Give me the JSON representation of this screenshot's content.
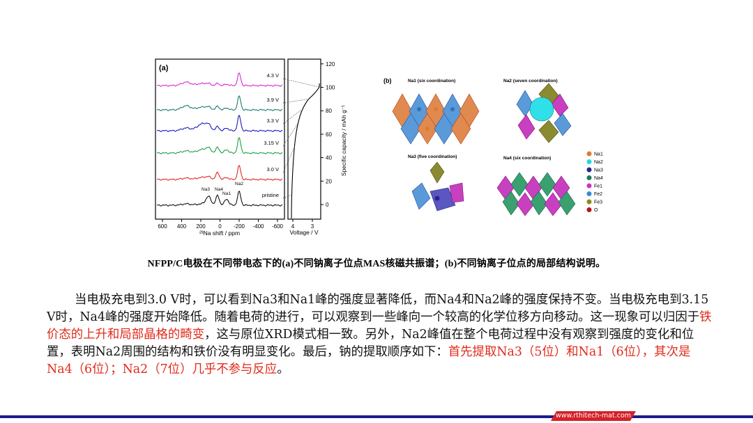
{
  "figure_a": {
    "panel_label": "(a)",
    "nmr_xaxis": {
      "label": "²³Na shift / ppm",
      "ticks": [
        "600",
        "400",
        "200",
        "0",
        "-200",
        "-400",
        "-600"
      ]
    },
    "spectrum_labels": [
      "4.3 V",
      "3.9 V",
      "3.3 V",
      "3.15 V",
      "3.0 V",
      "pristine"
    ],
    "spectrum_colors": [
      "#d62ad6",
      "#1a7a6c",
      "#1818c0",
      "#18a040",
      "#e02424",
      "#101010"
    ],
    "peak_labels": [
      "Na3",
      "Na4",
      "Na1",
      "Na2"
    ],
    "voltage_axis": {
      "label": "Voltage / V",
      "ticks": [
        "4",
        "3"
      ]
    },
    "capacity_axis": {
      "label": "Specific capacity / mAh g⁻¹",
      "ticks": [
        "0",
        "20",
        "40",
        "60",
        "80",
        "100",
        "120"
      ]
    }
  },
  "figure_b": {
    "panel_label": "(b)",
    "subpanels": [
      {
        "title": "Na1 (six coordination)"
      },
      {
        "title": "Na2 (seven coordination)"
      },
      {
        "title": "Na3 (five coordination)"
      },
      {
        "title": "Na4 (six coordination)"
      }
    ],
    "legend": [
      {
        "label": "Na1",
        "color": "#e07a30"
      },
      {
        "label": "Na2",
        "color": "#20d8e0"
      },
      {
        "label": "Na3",
        "color": "#2a2290"
      },
      {
        "label": "Na4",
        "color": "#207a5a"
      },
      {
        "label": "Fe1",
        "color": "#d030c8"
      },
      {
        "label": "Fe2",
        "color": "#3a88d8"
      },
      {
        "label": "Fe3",
        "color": "#8a8a20"
      },
      {
        "label": "O",
        "color": "#b81818"
      }
    ]
  },
  "caption": "NFPP/C电极在不同带电态下的(a)不同钠离子位点MAS核磁共振谱；(b)不同钠离子位点的局部结构说明。",
  "paragraph": {
    "seg1": "当电极充电到3.0 V时，可以看到Na3和Na1峰的强度显著降低，而Na4和Na2峰的强度保持不变。当电极充电到3.15 V时，Na4峰的强度开始降低。随着电荷的进行，可以观察到一些峰向一个较高的化学位移方向移动。这一现象可以归因于",
    "seg2_red": "铁价态的上升和局部晶格的畸变",
    "seg3": "，这与原位XRD模式相一致。另外，Na2峰值在整个电荷过程中没有观察到强度的变化和位置，表明Na2周围的结构和铁价没有明显变化。最后，钠的提取顺序如下：",
    "seg4_red": "首先提取Na3（5位）和Na1（6位），其次是Na4（6位）；Na2（7位）几乎不参与反应",
    "seg5": "。"
  },
  "footer_url": "www.rthitech-mat.com"
}
